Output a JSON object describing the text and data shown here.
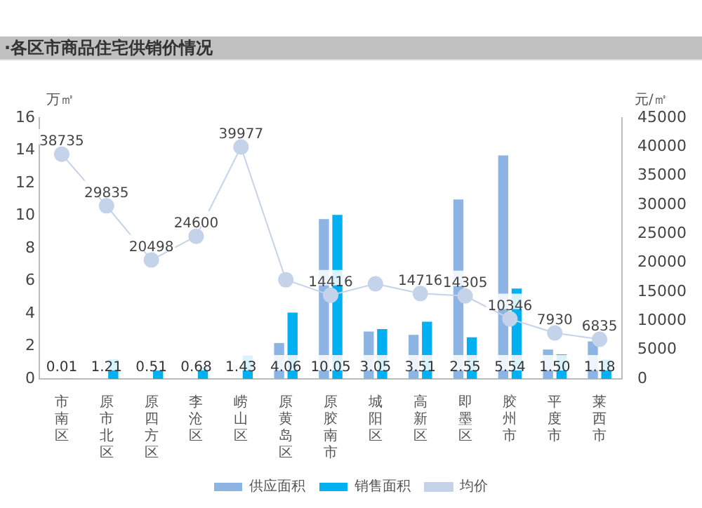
{
  "chart_data": {
    "type": "bar",
    "title": "·各区市商品住宅供销价情况",
    "ylabel": "万㎡",
    "y2label": "元/㎡",
    "categories": [
      "市南区",
      "原市北区",
      "原四方区",
      "李沧区",
      "崂山区",
      "原黄岛区",
      "原胶南市",
      "城阳区",
      "高新区",
      "即墨区",
      "胶州市",
      "平度市",
      "莱西市"
    ],
    "series": [
      {
        "name": "供应面积",
        "color": "#8db4e2",
        "values": [
          0,
          0,
          0,
          0,
          0,
          2.2,
          9.8,
          2.9,
          2.7,
          11,
          13.7,
          1.8,
          2.3
        ]
      },
      {
        "name": "销售面积",
        "color": "#00b0f0",
        "values": [
          0.01,
          1.21,
          0.51,
          0.68,
          1.43,
          4.06,
          10.05,
          3.05,
          3.51,
          2.55,
          5.54,
          1.5,
          1.18
        ],
        "value_labels": [
          "0.01",
          "1.21",
          "0.51",
          "0.68",
          "1.43",
          "4.06",
          "10.05",
          "3.05",
          "3.51",
          "2.55",
          "5.54",
          "1.50",
          "1.18"
        ]
      },
      {
        "name": "均价",
        "type": "line",
        "axis": "y2",
        "color": "#c5d3ea",
        "values": [
          38735,
          29835,
          20498,
          24600,
          39977,
          17100,
          14416,
          16400,
          14716,
          14305,
          10346,
          7930,
          6835
        ],
        "value_labels": [
          "38735",
          "29835",
          "20498",
          "24600",
          "39977",
          null,
          "14416",
          null,
          "14716",
          "14305",
          "10346",
          "7930",
          "6835"
        ]
      }
    ],
    "ylim": [
      0,
      16
    ],
    "yticks": [
      0,
      2,
      4,
      6,
      8,
      10,
      12,
      14,
      16
    ],
    "y2lim": [
      0,
      45000
    ],
    "y2ticks": [
      0,
      5000,
      10000,
      15000,
      20000,
      25000,
      30000,
      35000,
      40000,
      45000
    ],
    "marker": "circle",
    "grid": false,
    "legend": "bottom"
  }
}
